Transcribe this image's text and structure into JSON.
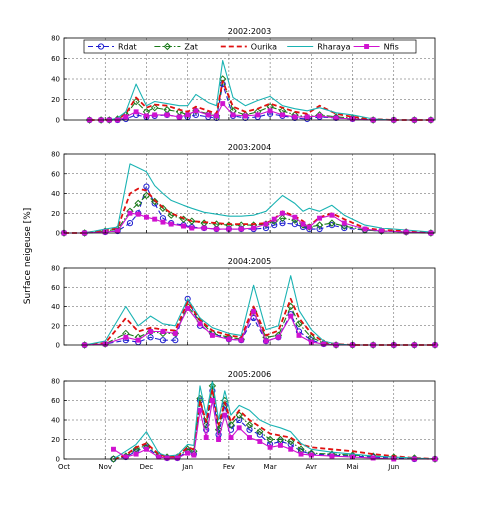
{
  "figure": {
    "ylabel": "Surface neigeuse [%]",
    "month_labels": [
      "Oct",
      "Nov",
      "Dec",
      "Jan",
      "Fev",
      "Mar",
      "Avr",
      "Mai",
      "Jun"
    ],
    "legend": [
      {
        "name": "Rdat",
        "color": "#1f1fd0",
        "style": "dashed",
        "marker": "circle"
      },
      {
        "name": "Zat",
        "color": "#1a7a1a",
        "style": "dashdot",
        "marker": "diamond"
      },
      {
        "name": "Ourika",
        "color": "#e01010",
        "style": "dashed",
        "marker": "none"
      },
      {
        "name": "Rharaya",
        "color": "#1ab3b3",
        "style": "solid",
        "marker": "none"
      },
      {
        "name": "Nfis",
        "color": "#d012d0",
        "style": "solid",
        "marker": "square"
      }
    ]
  },
  "chart_data": [
    {
      "type": "line",
      "title": "2002:2003",
      "x_unit": "months since 1 October",
      "ylim": [
        0,
        80
      ],
      "yticks": [
        0,
        20,
        40,
        60,
        80
      ],
      "grid": true,
      "legend_position": "top",
      "x": [
        0.62,
        0.9,
        1.1,
        1.3,
        1.5,
        1.75,
        2.0,
        2.2,
        2.5,
        2.8,
        3.0,
        3.2,
        3.5,
        3.7,
        3.85,
        4.1,
        4.4,
        4.7,
        5.0,
        5.3,
        5.6,
        5.9,
        6.2,
        6.6,
        7.0,
        7.5,
        8.0,
        8.5,
        8.9
      ],
      "series": [
        {
          "name": "Rdat",
          "values": [
            0,
            0,
            0,
            0,
            1,
            5,
            3,
            4,
            5,
            3,
            3,
            5,
            3,
            2,
            35,
            4,
            2,
            3,
            6,
            4,
            2,
            1,
            3,
            2,
            1,
            0,
            0,
            0,
            0
          ]
        },
        {
          "name": "Zat",
          "values": [
            0,
            0,
            0,
            1,
            5,
            18,
            8,
            12,
            10,
            8,
            5,
            9,
            6,
            4,
            40,
            9,
            5,
            8,
            13,
            9,
            5,
            3,
            5,
            3,
            2,
            0,
            0,
            0,
            0
          ]
        },
        {
          "name": "Ourika",
          "values": [
            0,
            0,
            0,
            1,
            6,
            22,
            12,
            15,
            14,
            10,
            8,
            13,
            9,
            6,
            38,
            13,
            8,
            11,
            16,
            12,
            8,
            6,
            14,
            6,
            3,
            1,
            0,
            0,
            0
          ]
        },
        {
          "name": "Rharaya",
          "values": [
            0,
            0,
            0,
            2,
            8,
            35,
            14,
            18,
            16,
            14,
            14,
            25,
            17,
            14,
            58,
            22,
            14,
            19,
            23,
            14,
            11,
            9,
            12,
            7,
            5,
            1,
            0,
            0,
            0
          ]
        },
        {
          "name": "Nfis",
          "values": [
            0,
            0,
            0,
            0,
            3,
            8,
            4,
            5,
            5,
            3,
            5,
            9,
            5,
            4,
            16,
            5,
            4,
            5,
            9,
            5,
            3,
            3,
            4,
            2,
            1,
            0,
            0,
            0,
            0
          ]
        }
      ]
    },
    {
      "type": "line",
      "title": "2003:2004",
      "x_unit": "months since 1 October",
      "ylim": [
        0,
        80
      ],
      "yticks": [
        0,
        20,
        40,
        60,
        80
      ],
      "grid": true,
      "x": [
        0.0,
        0.5,
        1.0,
        1.3,
        1.6,
        1.8,
        2.0,
        2.2,
        2.4,
        2.6,
        2.9,
        3.1,
        3.4,
        3.7,
        4.0,
        4.3,
        4.6,
        4.9,
        5.1,
        5.3,
        5.6,
        5.8,
        5.95,
        6.2,
        6.5,
        6.8,
        7.3,
        7.7,
        8.3,
        8.9
      ],
      "series": [
        {
          "name": "Rdat",
          "values": [
            0,
            0,
            1,
            2,
            10,
            20,
            47,
            30,
            15,
            10,
            8,
            6,
            5,
            4,
            4,
            4,
            4,
            5,
            8,
            10,
            9,
            6,
            4,
            4,
            8,
            5,
            3,
            2,
            1,
            0
          ]
        },
        {
          "name": "Zat",
          "values": [
            0,
            0,
            2,
            4,
            22,
            30,
            38,
            32,
            25,
            18,
            14,
            12,
            10,
            9,
            8,
            8,
            8,
            9,
            12,
            15,
            13,
            8,
            6,
            8,
            10,
            7,
            3,
            2,
            1,
            0
          ]
        },
        {
          "name": "Ourika",
          "values": [
            0,
            0,
            3,
            5,
            40,
            45,
            43,
            33,
            26,
            20,
            15,
            12,
            11,
            10,
            9,
            9,
            9,
            10,
            14,
            22,
            17,
            12,
            7,
            16,
            20,
            14,
            5,
            3,
            2,
            0
          ]
        },
        {
          "name": "Rharaya",
          "values": [
            0,
            0,
            4,
            6,
            70,
            66,
            62,
            48,
            40,
            33,
            28,
            25,
            21,
            19,
            17,
            17,
            18,
            22,
            30,
            38,
            30,
            22,
            25,
            22,
            28,
            18,
            8,
            5,
            3,
            1
          ]
        },
        {
          "name": "Nfis",
          "values": [
            0,
            0,
            1,
            2,
            20,
            19,
            16,
            14,
            11,
            9,
            7,
            5,
            5,
            4,
            4,
            4,
            5,
            9,
            14,
            20,
            16,
            9,
            6,
            15,
            18,
            10,
            4,
            2,
            1,
            0
          ]
        }
      ]
    },
    {
      "type": "line",
      "title": "2004:2005",
      "x_unit": "months since 1 October",
      "ylim": [
        0,
        80
      ],
      "yticks": [
        0,
        20,
        40,
        60,
        80
      ],
      "grid": true,
      "x": [
        0.5,
        1.0,
        1.5,
        1.8,
        2.1,
        2.4,
        2.7,
        3.0,
        3.3,
        3.6,
        4.0,
        4.3,
        4.6,
        4.9,
        5.2,
        5.5,
        5.7,
        6.0,
        6.3,
        6.6,
        7.0,
        7.5,
        8.0,
        8.5,
        9.0
      ],
      "series": [
        {
          "name": "Rdat",
          "values": [
            0,
            1,
            5,
            3,
            8,
            5,
            5,
            48,
            20,
            12,
            6,
            5,
            28,
            4,
            8,
            32,
            14,
            5,
            1,
            0,
            0,
            0,
            0,
            0,
            0
          ]
        },
        {
          "name": "Zat",
          "values": [
            0,
            1,
            12,
            8,
            14,
            12,
            12,
            40,
            25,
            12,
            8,
            6,
            35,
            8,
            10,
            40,
            22,
            8,
            2,
            0,
            0,
            0,
            0,
            0,
            0
          ]
        },
        {
          "name": "Ourika",
          "values": [
            0,
            2,
            28,
            14,
            18,
            16,
            15,
            45,
            26,
            15,
            10,
            8,
            40,
            10,
            15,
            48,
            28,
            12,
            3,
            1,
            0,
            0,
            0,
            0,
            0
          ]
        },
        {
          "name": "Rharaya",
          "values": [
            0,
            4,
            40,
            20,
            30,
            22,
            20,
            48,
            28,
            18,
            12,
            10,
            62,
            16,
            20,
            72,
            36,
            16,
            4,
            1,
            0,
            0,
            0,
            0,
            0
          ]
        },
        {
          "name": "Nfis",
          "values": [
            0,
            1,
            8,
            5,
            14,
            14,
            12,
            38,
            22,
            10,
            6,
            5,
            35,
            4,
            8,
            30,
            10,
            3,
            1,
            0,
            0,
            0,
            0,
            0,
            0
          ]
        }
      ]
    },
    {
      "type": "line",
      "title": "2005:2006",
      "x_unit": "months since 1 October",
      "ylim": [
        0,
        80
      ],
      "yticks": [
        0,
        20,
        40,
        60,
        80
      ],
      "grid": true,
      "x": [
        1.2,
        1.5,
        1.75,
        2.0,
        2.3,
        2.5,
        2.75,
        3.0,
        3.15,
        3.3,
        3.45,
        3.6,
        3.75,
        3.9,
        4.05,
        4.25,
        4.5,
        4.75,
        5.0,
        5.25,
        5.5,
        5.75,
        6.0,
        6.5,
        7.0,
        7.5,
        8.0,
        8.5,
        9.0
      ],
      "series": [
        {
          "name": "Rdat",
          "values": [
            0,
            2,
            8,
            12,
            3,
            1,
            1,
            8,
            5,
            60,
            30,
            70,
            25,
            55,
            30,
            40,
            30,
            25,
            15,
            18,
            15,
            8,
            5,
            4,
            3,
            2,
            1,
            0,
            0
          ]
        },
        {
          "name": "Zat",
          "values": [
            0,
            3,
            10,
            14,
            4,
            2,
            2,
            10,
            8,
            62,
            35,
            75,
            30,
            60,
            35,
            45,
            35,
            28,
            20,
            20,
            18,
            10,
            6,
            5,
            4,
            3,
            2,
            1,
            0
          ]
        },
        {
          "name": "Ourika",
          "values": [
            0,
            4,
            12,
            16,
            5,
            2,
            3,
            12,
            10,
            60,
            38,
            72,
            35,
            58,
            38,
            50,
            40,
            33,
            26,
            24,
            22,
            15,
            12,
            10,
            8,
            5,
            3,
            1,
            0
          ]
        },
        {
          "name": "Rharaya",
          "values": [
            0,
            8,
            15,
            28,
            6,
            3,
            4,
            15,
            14,
            75,
            45,
            80,
            40,
            70,
            45,
            55,
            50,
            40,
            35,
            32,
            28,
            16,
            10,
            7,
            5,
            3,
            2,
            1,
            0
          ]
        },
        {
          "name": "Nfis",
          "values": [
            10,
            2,
            5,
            10,
            2,
            1,
            1,
            6,
            4,
            50,
            22,
            60,
            20,
            45,
            22,
            32,
            22,
            18,
            12,
            14,
            10,
            5,
            4,
            3,
            2,
            1,
            0,
            0,
            0
          ]
        }
      ]
    }
  ]
}
